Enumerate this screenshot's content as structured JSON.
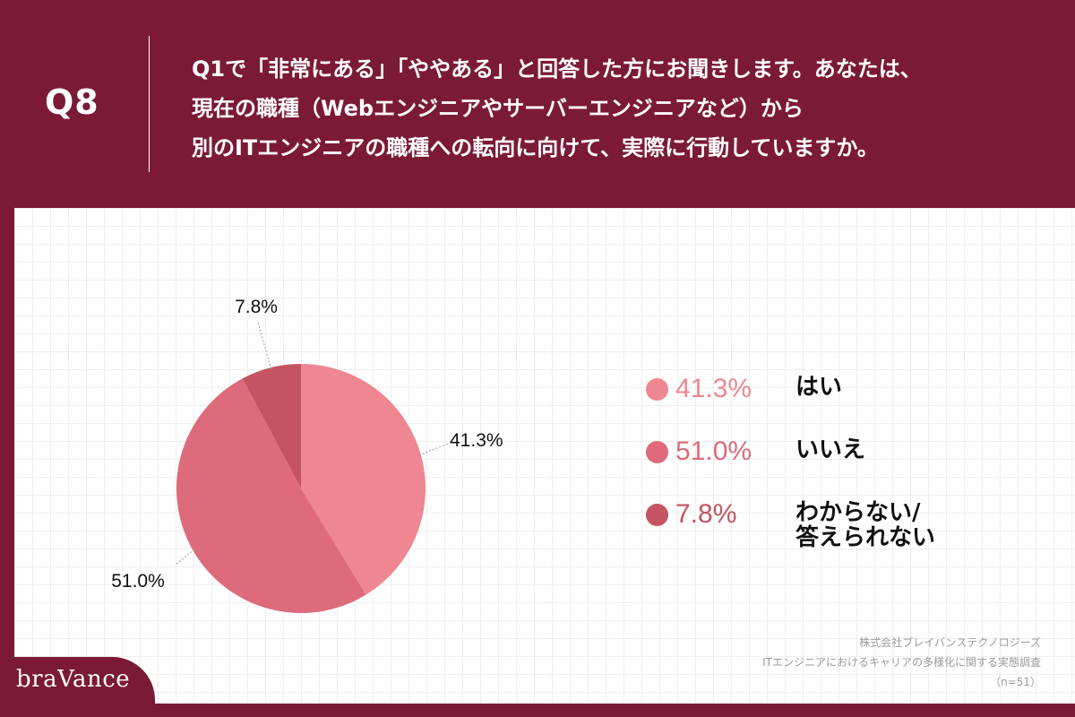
{
  "header": {
    "q_number": "Q8",
    "question_lines": [
      "Q1で「非常にある」「ややある」と回答した方にお聞きします。あなたは、",
      "現在の職種（Webエンジニアやサーバーエンジニアなど）から",
      "別のITエンジニアの職種への転向に向けて、実際に行動していますか。"
    ]
  },
  "chart_data": {
    "type": "pie",
    "categories": [
      "はい",
      "いいえ",
      "わからない/\n答えられない"
    ],
    "values": [
      41.3,
      51.0,
      7.8
    ],
    "labels": [
      "41.3%",
      "51.0%",
      "7.8%"
    ],
    "colors": [
      "#ee8791",
      "#dd6b7b",
      "#c55462"
    ],
    "start": "12 o'clock",
    "direction": "clockwise",
    "legend": "right"
  },
  "legend_items": [
    {
      "pct": "41.3%",
      "label": "はい",
      "color": "#ee8791"
    },
    {
      "pct": "51.0%",
      "label": "いいえ",
      "color": "#dd6b7b"
    },
    {
      "pct": "7.8%",
      "label": "わからない/\n答えられない",
      "color": "#c55462"
    }
  ],
  "source": {
    "company": "株式会社ブレイバンステクノロジーズ",
    "survey": "ITエンジニアにおけるキャリアの多様化に関する実態調査",
    "n": "（n=51）"
  },
  "brand": {
    "name": "braVance"
  },
  "colors": {
    "background": "#7b1a35",
    "panel": "#ffffff"
  }
}
